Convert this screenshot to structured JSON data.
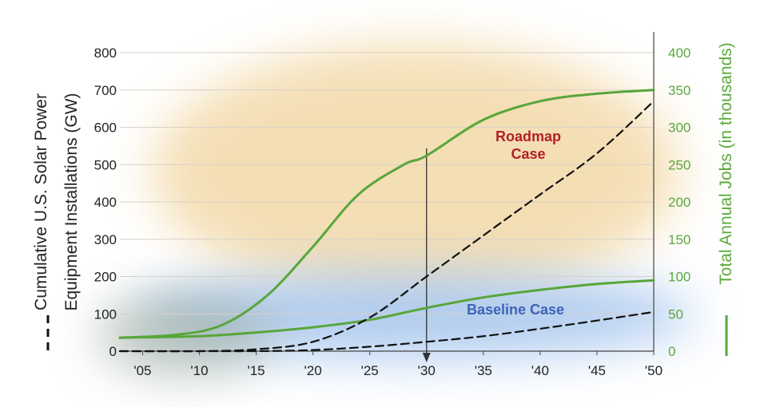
{
  "colors": {
    "jobs_line": "#58a63b",
    "installations_line": "#111111",
    "roadmap_text": "#b32025",
    "baseline_text": "#3e63b6",
    "right_axis": "#5aa83c",
    "roadmap_glow": "#f3d9a8",
    "baseline_glow": "#a9c8ee"
  },
  "chart_data": {
    "type": "line",
    "x_tick_labels": [
      "'05",
      "'10",
      "'15",
      "'20",
      "'25",
      "'30",
      "'35",
      "'40",
      "'45",
      "'50"
    ],
    "x_ticks": [
      2005,
      2010,
      2015,
      2020,
      2025,
      2030,
      2035,
      2040,
      2045,
      2050
    ],
    "xlim": [
      2003,
      2050
    ],
    "y_left": {
      "label_line1": "Cumulative U.S. Solar Power",
      "label_line2": "Equipment Installations (GW)",
      "ticks": [
        0,
        100,
        200,
        300,
        400,
        500,
        600,
        700,
        800
      ],
      "ylim": [
        0,
        800
      ]
    },
    "y_right": {
      "label": "Total Annual Jobs (in thousands)",
      "ticks": [
        0,
        50,
        100,
        150,
        200,
        250,
        300,
        350,
        400
      ],
      "ylim": [
        0,
        400
      ]
    },
    "series": [
      {
        "axis": "right",
        "style": "solid",
        "x": [
          2003,
          2008,
          2012,
          2016,
          2020,
          2024,
          2028,
          2030,
          2035,
          2040,
          2045,
          2050
        ],
        "values": [
          18,
          22,
          35,
          75,
          140,
          210,
          250,
          262,
          310,
          335,
          345,
          350
        ]
      },
      {
        "axis": "right",
        "style": "solid",
        "x": [
          2003,
          2010,
          2015,
          2020,
          2025,
          2030,
          2035,
          2040,
          2045,
          2050
        ],
        "values": [
          18,
          20,
          25,
          32,
          42,
          58,
          72,
          82,
          90,
          95
        ]
      },
      {
        "axis": "left",
        "style": "dashed",
        "x": [
          2003,
          2010,
          2015,
          2020,
          2025,
          2030,
          2035,
          2040,
          2045,
          2050
        ],
        "values": [
          0,
          0,
          5,
          25,
          90,
          200,
          310,
          420,
          530,
          670
        ]
      },
      {
        "axis": "left",
        "style": "dashed",
        "x": [
          2003,
          2010,
          2015,
          2020,
          2025,
          2030,
          2035,
          2040,
          2045,
          2050
        ],
        "values": [
          0,
          0,
          0,
          3,
          12,
          25,
          40,
          60,
          82,
          105
        ]
      }
    ],
    "annotations": {
      "roadmap": "Roadmap\nCase",
      "baseline": "Baseline Case"
    },
    "marker_year": 2030,
    "grid": true
  }
}
